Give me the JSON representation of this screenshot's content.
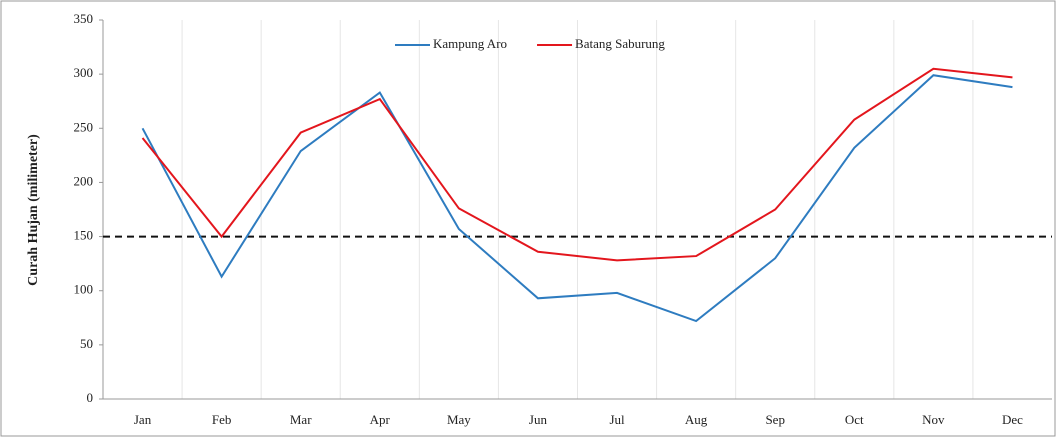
{
  "chart_data": {
    "type": "line",
    "y_label": "Curah Hujan (milimeter)",
    "categories": [
      "Jan",
      "Feb",
      "Mar",
      "Apr",
      "May",
      "Jun",
      "Jul",
      "Aug",
      "Sep",
      "Oct",
      "Nov",
      "Dec"
    ],
    "series": [
      {
        "name": "Kampung Aro",
        "color": "#2e7cc0",
        "values": [
          250,
          113,
          229,
          283,
          157,
          93,
          98,
          72,
          130,
          232,
          299,
          288
        ]
      },
      {
        "name": "Batang Saburung",
        "color": "#e3161d",
        "values": [
          241,
          150,
          246,
          277,
          176,
          136,
          128,
          132,
          175,
          258,
          305,
          297
        ]
      }
    ],
    "ylim": [
      0,
      350
    ],
    "yticks": [
      0,
      50,
      100,
      150,
      200,
      250,
      300,
      350
    ],
    "reference_line": 150,
    "grid": true,
    "legend": "top"
  }
}
